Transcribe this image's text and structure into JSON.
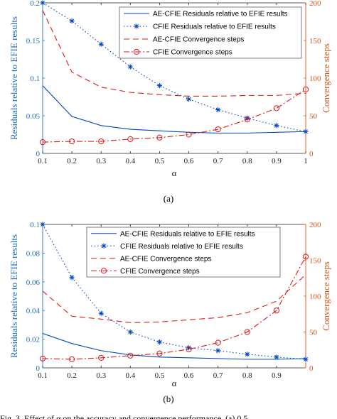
{
  "colors": {
    "left_axis": "#1f6fc5",
    "right_axis": "#d9541a",
    "series_blue": "#0047bb",
    "series_red": "#dd1b1b"
  },
  "chart_data": [
    {
      "type": "line",
      "caption": "(a)",
      "xlabel": "α",
      "ylabel_left": "Residuals relative to EFIE results",
      "ylabel_right": "Convergence steps",
      "xlim": [
        0.1,
        1
      ],
      "ylim_left": [
        0,
        0.2
      ],
      "ylim_right": [
        0,
        200
      ],
      "xticks": [
        0.1,
        0.2,
        0.3,
        0.4,
        0.5,
        0.6,
        0.7,
        0.8,
        0.9,
        1
      ],
      "xtick_labels": [
        "0.1",
        "0.2",
        "0.3",
        "0.4",
        "0.5",
        "0.6",
        "0.7",
        "0.8",
        "0.9",
        "1"
      ],
      "yticks_left": [
        0,
        0.05,
        0.1,
        0.15,
        0.2
      ],
      "ytick_labels_left": [
        "0",
        "0.05",
        "0.1",
        "0.15",
        "0.2"
      ],
      "yticks_right": [
        0,
        50,
        100,
        150,
        200
      ],
      "ytick_labels_right": [
        "0",
        "50",
        "100",
        "150",
        "200"
      ],
      "legend_position": "top-right",
      "x": [
        0.1,
        0.2,
        0.3,
        0.4,
        0.5,
        0.6,
        0.7,
        0.8,
        0.9,
        1.0
      ],
      "series": [
        {
          "name": "AE-CFIE Residuals relative to EFIE results",
          "axis": "left",
          "style": "solid",
          "marker": "none",
          "color": "blue",
          "values": [
            0.09,
            0.049,
            0.037,
            0.032,
            0.03,
            0.028,
            0.027,
            0.027,
            0.028,
            0.029
          ]
        },
        {
          "name": "CFIE Residuals relative to EFIE results",
          "axis": "left",
          "style": "dotted",
          "marker": "star",
          "color": "blue",
          "values": [
            0.2,
            0.176,
            0.145,
            0.115,
            0.09,
            0.072,
            0.058,
            0.047,
            0.037,
            0.029
          ]
        },
        {
          "name": "AE-CFIE Convergence steps",
          "axis": "right",
          "style": "dashed",
          "marker": "none",
          "color": "red",
          "values": [
            190,
            108,
            88,
            81,
            78,
            76,
            76,
            77,
            77,
            80
          ]
        },
        {
          "name": "CFIE Convergence steps",
          "axis": "right",
          "style": "dashdot",
          "marker": "circle",
          "color": "red",
          "values": [
            15,
            16,
            16,
            19,
            21,
            25,
            32,
            45,
            60,
            85
          ]
        }
      ]
    },
    {
      "type": "line",
      "caption": "(b)",
      "xlabel": "α",
      "ylabel_left": "Residuals relative to EFIE results",
      "ylabel_right": "Convergence steps",
      "xlim": [
        0.1,
        1
      ],
      "ylim_left": [
        0,
        0.1
      ],
      "ylim_right": [
        0,
        200
      ],
      "xticks": [
        0.1,
        0.2,
        0.3,
        0.4,
        0.5,
        0.6,
        0.7,
        0.8,
        0.9
      ],
      "xtick_labels": [
        "0.1",
        "0.2",
        "0.3",
        "0.4",
        "0.5",
        "0.6",
        "0.7",
        "0.8",
        "0.9"
      ],
      "yticks_left": [
        0,
        0.02,
        0.04,
        0.06,
        0.08,
        0.1
      ],
      "ytick_labels_left": [
        "0",
        "0.02",
        "0.04",
        "0.06",
        "0.08",
        "0.1"
      ],
      "yticks_right": [
        0,
        50,
        100,
        150,
        200
      ],
      "ytick_labels_right": [
        "0",
        "50",
        "100",
        "150",
        "200"
      ],
      "legend_position": "top-right",
      "x": [
        0.1,
        0.2,
        0.3,
        0.4,
        0.5,
        0.6,
        0.7,
        0.8,
        0.9,
        1.0
      ],
      "series": [
        {
          "name": "AE-CFIE Residuals relative to EFIE results",
          "axis": "left",
          "style": "solid",
          "marker": "none",
          "color": "blue",
          "values": [
            0.024,
            0.017,
            0.012,
            0.009,
            0.0075,
            0.007,
            0.0065,
            0.006,
            0.006,
            0.0065
          ]
        },
        {
          "name": "CFIE Residuals relative to EFIE results",
          "axis": "left",
          "style": "dotted",
          "marker": "star",
          "color": "blue",
          "values": [
            0.1,
            0.063,
            0.038,
            0.025,
            0.018,
            0.014,
            0.012,
            0.0095,
            0.0075,
            0.006
          ]
        },
        {
          "name": "AE-CFIE Convergence steps",
          "axis": "right",
          "style": "dashed",
          "marker": "none",
          "color": "red",
          "values": [
            107,
            72,
            68,
            63,
            64,
            67,
            70,
            77,
            93,
            130
          ]
        },
        {
          "name": "CFIE Convergence steps",
          "axis": "right",
          "style": "dashdot",
          "marker": "circle",
          "color": "red",
          "values": [
            13,
            12,
            14,
            17,
            20,
            26,
            35,
            50,
            80,
            155
          ]
        }
      ]
    }
  ],
  "footer_text": "Fig. 3.   Effect of α on the accuracy and convergence performance. (a) 0.5"
}
